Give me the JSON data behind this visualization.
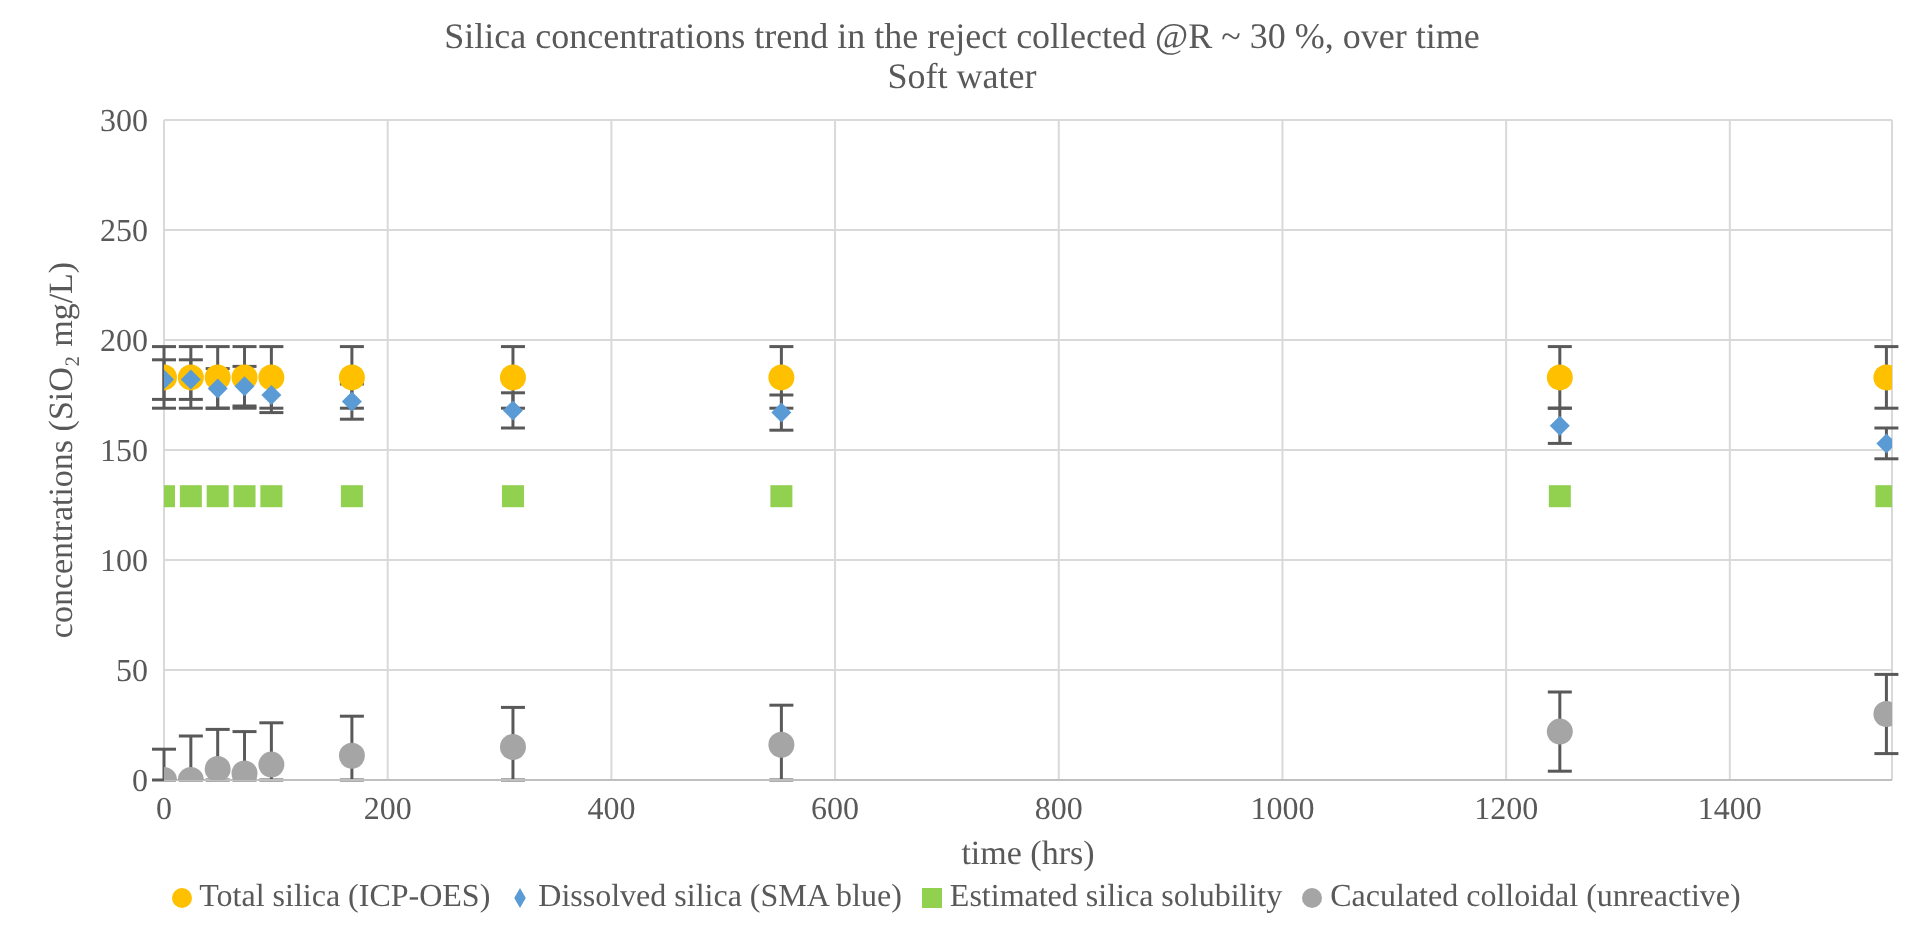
{
  "chart_data": {
    "type": "scatter",
    "title": "Silica concentrations trend in the reject collected @R ~ 30 %, over time",
    "subtitle": "Soft water",
    "xlabel": "time (hrs)",
    "ylabel": "concentrations (SiO₂ mg/L)",
    "x": [
      0,
      24,
      48,
      72,
      96,
      168,
      312,
      552,
      1248,
      1540
    ],
    "series": [
      {
        "name": "Total silica (ICP-OES)",
        "color": "#ffc000",
        "marker": "circle",
        "values": [
          183,
          183,
          183,
          183,
          183,
          183,
          183,
          183,
          183,
          183
        ],
        "errors": [
          14,
          14,
          14,
          14,
          14,
          14,
          14,
          14,
          14,
          14
        ]
      },
      {
        "name": "Dissolved silica (SMA blue)",
        "color": "#5b9bd5",
        "marker": "diamond",
        "values": [
          182,
          182,
          178,
          179,
          175,
          172,
          168,
          167,
          161,
          153
        ],
        "errors": [
          9,
          9,
          9,
          9,
          8,
          8,
          8,
          8,
          8,
          7
        ]
      },
      {
        "name": "Estimated silica solubility",
        "color": "#92d050",
        "marker": "square",
        "values": [
          129,
          129,
          129,
          129,
          129,
          129,
          129,
          129,
          129,
          129
        ]
      },
      {
        "name": "Caculated colloidal (unreactive)",
        "color": "#a5a5a5",
        "marker": "circle",
        "values": [
          0,
          0,
          5,
          3,
          7,
          11,
          15,
          16,
          22,
          30
        ],
        "errors": [
          [
            0,
            14
          ],
          [
            0,
            20
          ],
          [
            0,
            23
          ],
          [
            0,
            22
          ],
          [
            0,
            26
          ],
          [
            0,
            29
          ],
          [
            0,
            33
          ],
          [
            0,
            34
          ],
          [
            4,
            40
          ],
          [
            12,
            48
          ]
        ]
      }
    ],
    "xlim": [
      0,
      1545
    ],
    "xticks": [
      0,
      200,
      400,
      600,
      800,
      1000,
      1200,
      1400
    ],
    "ylim": [
      0,
      300
    ],
    "yticks": [
      0,
      50,
      100,
      150,
      200,
      250,
      300
    ],
    "grid": true,
    "legend": "bottom"
  }
}
